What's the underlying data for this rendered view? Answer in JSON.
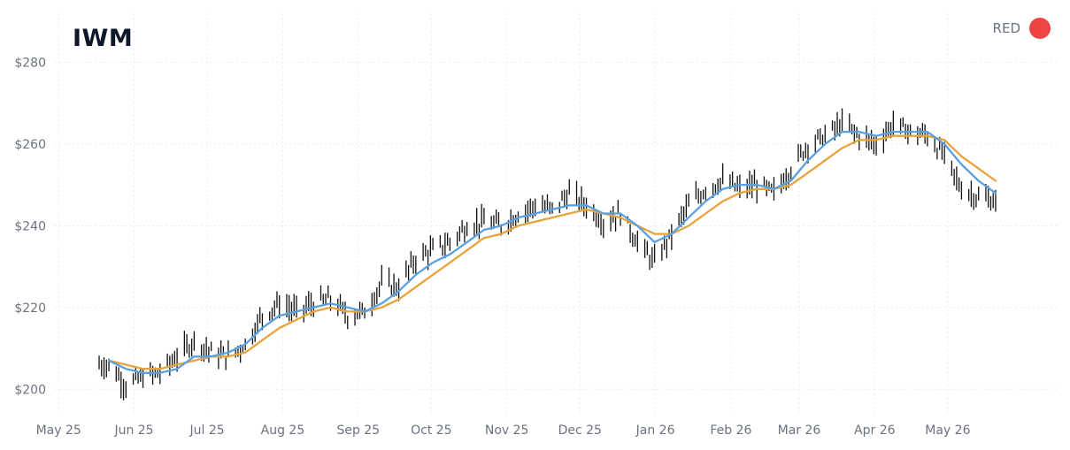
{
  "chart_data": {
    "type": "candlestick",
    "title": "IWM",
    "legend": {
      "label": "RED",
      "color": "#ef4444",
      "placement": "top-right"
    },
    "grid": true,
    "colors": {
      "price": "#111111",
      "ma_fast": "#5aa0e0",
      "ma_slow": "#e8a33a",
      "grid": "#e5e7eb",
      "tick_text": "#6b7280"
    },
    "x_ticks": [
      "May 25",
      "Jun 25",
      "Jul 25",
      "Aug 25",
      "Sep 25",
      "Oct 25",
      "Nov 25",
      "Dec 25",
      "Jan 26",
      "Feb 26",
      "Mar 26",
      "Apr 26",
      "May 26"
    ],
    "y_ticks": [
      "$200",
      "$220",
      "$240",
      "$260",
      "$280"
    ],
    "ylim": [
      194,
      292
    ],
    "x": [
      "2025-05-30",
      "2025-06-06",
      "2025-06-13",
      "2025-06-20",
      "2025-06-27",
      "2025-07-04",
      "2025-07-11",
      "2025-07-18",
      "2025-07-25",
      "2025-08-01",
      "2025-08-08",
      "2025-08-15",
      "2025-08-22",
      "2025-08-29",
      "2025-09-05",
      "2025-09-12",
      "2025-09-19",
      "2025-09-26",
      "2025-10-03",
      "2025-10-10",
      "2025-10-17",
      "2025-10-24",
      "2025-10-31",
      "2025-11-07",
      "2025-11-14",
      "2025-11-21",
      "2025-11-28",
      "2025-12-05",
      "2025-12-12",
      "2025-12-19",
      "2025-12-26",
      "2026-01-02",
      "2026-01-09",
      "2026-01-16",
      "2026-01-23",
      "2026-01-30",
      "2026-02-06",
      "2026-02-13",
      "2026-02-20",
      "2026-02-27",
      "2026-03-06",
      "2026-03-13",
      "2026-03-20",
      "2026-03-27",
      "2026-04-03",
      "2026-04-10",
      "2026-04-17",
      "2026-04-24",
      "2026-05-01",
      "2026-05-08",
      "2026-05-15",
      "2026-05-22",
      "2026-05-29"
    ],
    "series": [
      {
        "values": [
          206,
          201,
          203,
          204,
          208,
          212,
          209,
          208,
          211,
          218,
          221,
          219,
          221,
          222,
          218,
          219,
          226,
          225,
          232,
          234,
          236,
          240,
          241,
          240,
          243,
          245,
          244,
          248,
          245,
          241,
          243,
          236,
          231,
          238,
          245,
          249,
          251,
          249,
          250,
          248,
          254,
          260,
          262,
          265,
          262,
          260,
          265,
          263,
          262,
          257,
          249,
          247,
          246
        ]
      },
      {
        "values": [
          207,
          205,
          204,
          204,
          205,
          208,
          208,
          209,
          211,
          215,
          218,
          219,
          220,
          221,
          220,
          219,
          221,
          224,
          228,
          231,
          233,
          236,
          239,
          240,
          242,
          243,
          244,
          245,
          245,
          243,
          243,
          240,
          236,
          238,
          242,
          246,
          249,
          250,
          250,
          249,
          251,
          256,
          260,
          263,
          263,
          262,
          263,
          263,
          263,
          260,
          255,
          251,
          248
        ]
      },
      {
        "values": [
          207,
          206,
          205,
          205,
          206,
          207,
          208,
          208,
          209,
          212,
          215,
          217,
          219,
          220,
          219,
          219,
          220,
          222,
          225,
          228,
          231,
          234,
          237,
          238,
          240,
          241,
          242,
          243,
          244,
          243,
          242,
          240,
          238,
          238,
          240,
          243,
          246,
          248,
          249,
          249,
          250,
          253,
          256,
          259,
          261,
          261,
          262,
          262,
          262,
          261,
          257,
          254,
          251
        ]
      }
    ]
  }
}
